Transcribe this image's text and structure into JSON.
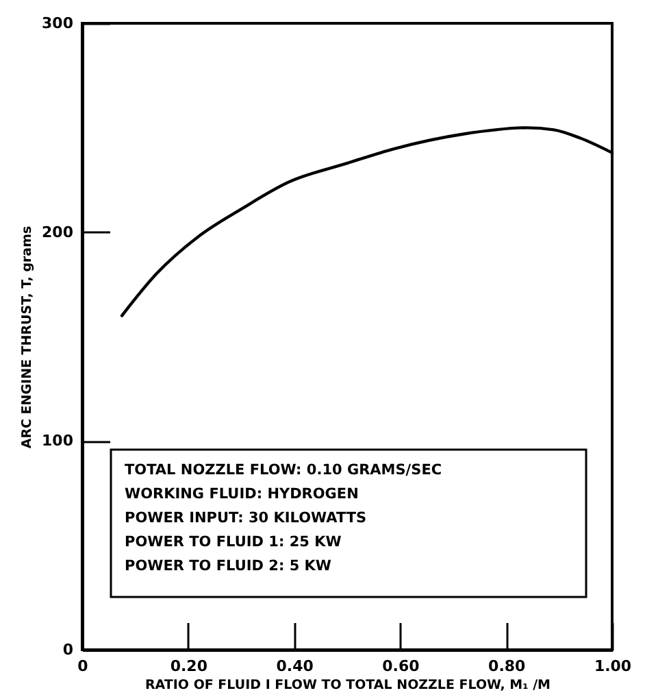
{
  "chart_data": {
    "type": "line",
    "xlabel": "RATIO OF FLUID I FLOW TO TOTAL NOZZLE FLOW, M₁ /M",
    "ylabel": "ARC ENGINE THRUST, T, grams",
    "x": [
      0.075,
      0.14,
      0.22,
      0.3,
      0.39,
      0.5,
      0.59,
      0.72,
      0.84,
      0.89,
      0.94,
      1.0
    ],
    "series": [
      {
        "color": "#000000",
        "values": [
          160,
          180,
          198,
          211,
          224,
          233,
          240,
          247,
          250,
          249,
          245,
          238
        ]
      }
    ],
    "xlim": [
      0,
      1.0
    ],
    "ylim": [
      0,
      300
    ],
    "xticks": [
      0,
      {
        "value": 0.2,
        "label": "0.20"
      },
      {
        "value": 0.4,
        "label": "0.40"
      },
      {
        "value": 0.6,
        "label": "0.60"
      },
      {
        "value": 0.8,
        "label": "0.80"
      },
      {
        "value": 1.0,
        "label": "1.00"
      }
    ],
    "yticks": [
      0,
      100,
      200,
      300
    ],
    "grid": false,
    "marker": "none",
    "line_style": "solid",
    "annotations": [
      "TOTAL NOZZLE FLOW: 0.10 GRAMS/SEC",
      "WORKING FLUID: HYDROGEN",
      "POWER INPUT: 30 KILOWATTS",
      "POWER TO FLUID 1: 25 KW",
      "POWER TO FLUID 2: 5 KW"
    ]
  }
}
